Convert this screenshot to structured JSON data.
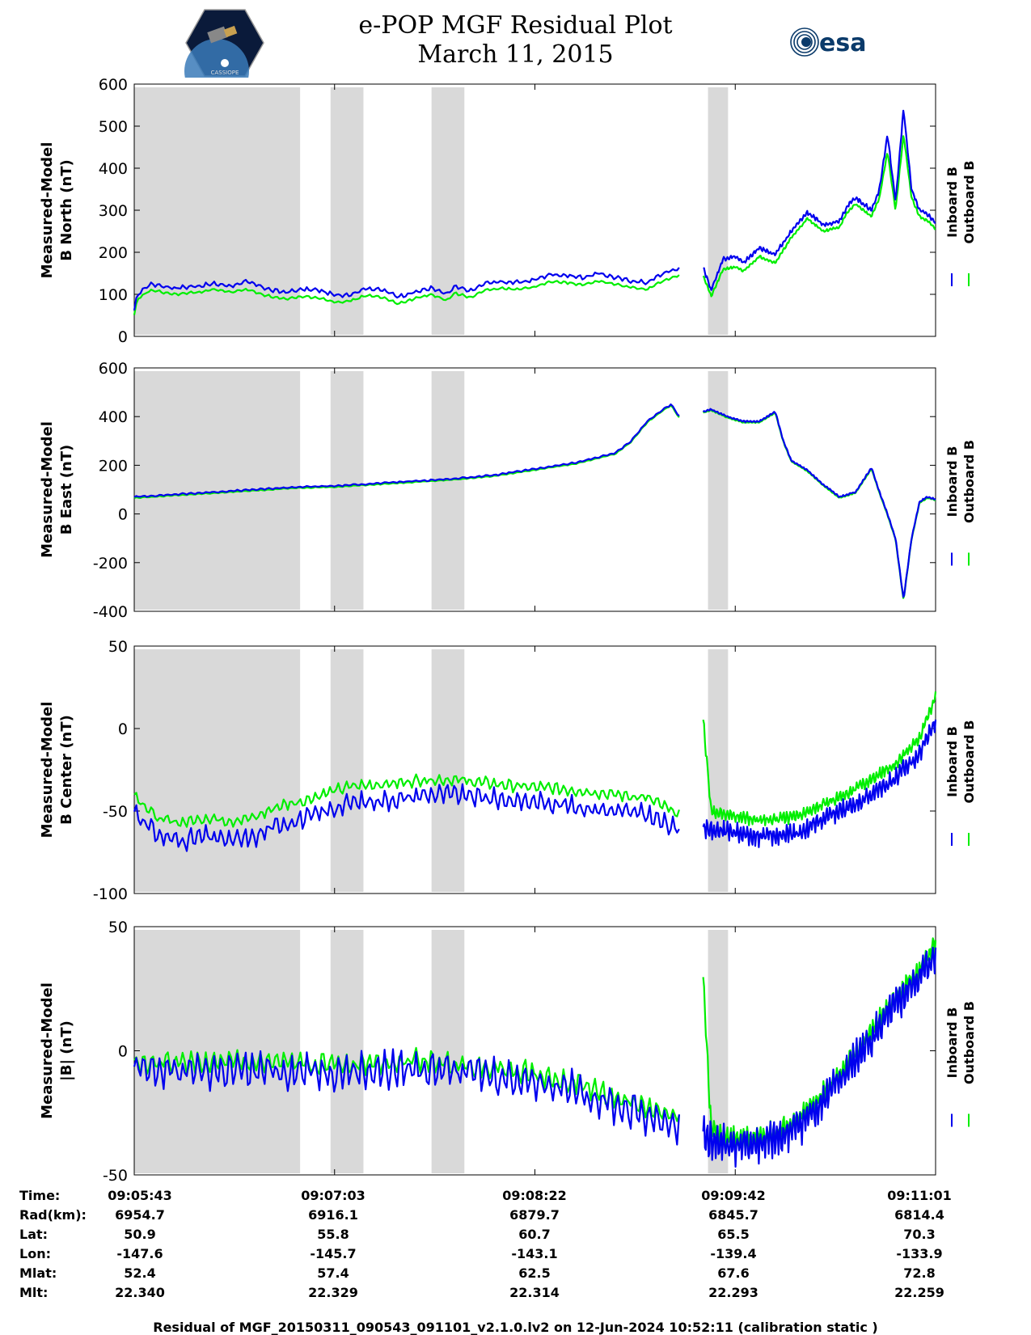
{
  "header": {
    "title_line1": "e-POP MGF Residual Plot",
    "title_line2": "March 11, 2015",
    "logo_left_text": "CASSIOPE",
    "logo_right_text": "esa"
  },
  "colors": {
    "inboard": "#0000ee",
    "outboard": "#00ee00",
    "shade": "#d9d9d9"
  },
  "chart_data": [
    {
      "type": "line",
      "panel": "b-north",
      "ylabel_line1": "Measured-Model",
      "ylabel_line2": "B North (nT)",
      "ylim": [
        0,
        600
      ],
      "yticks": [
        0,
        100,
        200,
        300,
        400,
        500,
        600
      ],
      "ytick_labels": [
        "0",
        "100",
        "200",
        "300",
        "400",
        "500",
        "600"
      ],
      "legend": [
        "Inboard B",
        "Outboard B"
      ],
      "series": [
        {
          "name": "Inboard B",
          "segments": [
            {
              "x": [
                0,
                0.4,
                2,
                5,
                8,
                10,
                12,
                14,
                16,
                17,
                19,
                21,
                23,
                25,
                27,
                29,
                31,
                33,
                35,
                37,
                39,
                40,
                42,
                44,
                46,
                48,
                50,
                52,
                54,
                56,
                58,
                60,
                62,
                64,
                66,
                68
              ],
              "y": [
                60,
                100,
                125,
                115,
                120,
                125,
                120,
                130,
                118,
                110,
                105,
                112,
                110,
                98,
                100,
                115,
                110,
                95,
                105,
                115,
                100,
                118,
                108,
                128,
                130,
                128,
                135,
                148,
                145,
                140,
                150,
                140,
                132,
                128,
                150,
                162
              ]
            },
            {
              "x": [
                71,
                72,
                73.5,
                75,
                76,
                78,
                80,
                82,
                84,
                86,
                88,
                89,
                90,
                91,
                92,
                93,
                94,
                95,
                96,
                97,
                98,
                99,
                100
              ],
              "y": [
                165,
                110,
                185,
                190,
                175,
                210,
                195,
                250,
                295,
                265,
                275,
                310,
                330,
                315,
                300,
                350,
                480,
                320,
                540,
                350,
                300,
                290,
                270
              ]
            }
          ]
        },
        {
          "name": "Outboard B",
          "segments": [
            {
              "x": [
                0,
                0.4,
                2,
                5,
                8,
                10,
                12,
                14,
                16,
                17,
                19,
                21,
                23,
                25,
                27,
                29,
                31,
                33,
                35,
                37,
                39,
                40,
                42,
                44,
                46,
                48,
                50,
                52,
                54,
                56,
                58,
                60,
                62,
                64,
                66,
                68
              ],
              "y": [
                50,
                88,
                110,
                100,
                105,
                112,
                105,
                112,
                100,
                95,
                88,
                95,
                92,
                82,
                84,
                98,
                92,
                78,
                90,
                100,
                85,
                103,
                92,
                112,
                114,
                112,
                118,
                130,
                128,
                122,
                132,
                124,
                116,
                112,
                132,
                146
              ]
            },
            {
              "x": [
                71,
                72,
                73.5,
                75,
                76,
                78,
                80,
                82,
                84,
                86,
                88,
                89,
                90,
                91,
                92,
                93,
                94,
                95,
                96,
                97,
                98,
                99,
                100
              ],
              "y": [
                145,
                95,
                160,
                165,
                155,
                190,
                175,
                235,
                280,
                250,
                260,
                295,
                315,
                300,
                285,
                330,
                440,
                300,
                480,
                330,
                285,
                275,
                255
              ]
            }
          ]
        }
      ]
    },
    {
      "type": "line",
      "panel": "b-east",
      "ylabel_line1": "Measured-Model",
      "ylabel_line2": "B East (nT)",
      "ylim": [
        -400,
        600
      ],
      "yticks": [
        -400,
        -200,
        0,
        200,
        400,
        600
      ],
      "ytick_labels": [
        "-400",
        "-200",
        "0",
        "200",
        "400",
        "600"
      ],
      "legend": [
        "Inboard B",
        "Outboard B"
      ],
      "series": [
        {
          "name": "Inboard B",
          "segments": [
            {
              "x": [
                0,
                5,
                10,
                15,
                20,
                25,
                30,
                35,
                40,
                45,
                50,
                55,
                60,
                62,
                64,
                66,
                67,
                68
              ],
              "y": [
                70,
                80,
                90,
                100,
                110,
                115,
                125,
                135,
                145,
                160,
                185,
                210,
                250,
                300,
                380,
                430,
                450,
                400
              ]
            },
            {
              "x": [
                71,
                72,
                74,
                76,
                78,
                80,
                81,
                82,
                84,
                86,
                88,
                90,
                92,
                93,
                94,
                95,
                96,
                97,
                98,
                99,
                100
              ],
              "y": [
                420,
                430,
                400,
                380,
                380,
                420,
                300,
                220,
                180,
                120,
                70,
                90,
                190,
                90,
                0,
                -100,
                -350,
                -100,
                50,
                70,
                60
              ]
            }
          ]
        },
        {
          "name": "Outboard B",
          "segments": [
            {
              "x": [
                0,
                5,
                10,
                15,
                20,
                25,
                30,
                35,
                40,
                45,
                50,
                55,
                60,
                62,
                64,
                66,
                67,
                68
              ],
              "y": [
                66,
                76,
                86,
                96,
                106,
                111,
                121,
                131,
                141,
                156,
                181,
                206,
                246,
                296,
                376,
                426,
                446,
                396
              ]
            },
            {
              "x": [
                71,
                72,
                74,
                76,
                78,
                80,
                81,
                82,
                84,
                86,
                88,
                90,
                92,
                93,
                94,
                95,
                96,
                97,
                98,
                99,
                100
              ],
              "y": [
                416,
                426,
                396,
                376,
                376,
                416,
                296,
                216,
                176,
                116,
                66,
                86,
                186,
                86,
                -4,
                -104,
                -354,
                -104,
                46,
                66,
                56
              ]
            }
          ]
        }
      ]
    },
    {
      "type": "line",
      "panel": "b-center",
      "ylabel_line1": "Measured-Model",
      "ylabel_line2": "B Center (nT)",
      "ylim": [
        -100,
        50
      ],
      "yticks": [
        -100,
        -50,
        0,
        50
      ],
      "ytick_labels": [
        "-100",
        "-50",
        "0",
        "50"
      ],
      "legend": [
        "Inboard B",
        "Outboard B"
      ],
      "series": [
        {
          "name": "Inboard B",
          "segments": [
            {
              "x": [
                0,
                3,
                6,
                9,
                12,
                15,
                18,
                21,
                24,
                27,
                30,
                33,
                36,
                40,
                44,
                48,
                52,
                56,
                60,
                64,
                68
              ],
              "y": [
                -50,
                -65,
                -68,
                -65,
                -68,
                -66,
                -58,
                -55,
                -50,
                -45,
                -44,
                -43,
                -40,
                -40,
                -42,
                -44,
                -45,
                -48,
                -50,
                -52,
                -62
              ]
            },
            {
              "x": [
                71,
                74,
                77,
                80,
                83,
                86,
                89,
                92,
                95,
                98,
                100
              ],
              "y": [
                -60,
                -62,
                -65,
                -65,
                -63,
                -55,
                -48,
                -40,
                -30,
                -15,
                5
              ]
            }
          ]
        },
        {
          "name": "Outboard B",
          "segments": [
            {
              "x": [
                0,
                3,
                6,
                9,
                12,
                15,
                18,
                21,
                24,
                27,
                30,
                33,
                36,
                40,
                44,
                48,
                52,
                56,
                60,
                64,
                68
              ],
              "y": [
                -40,
                -55,
                -57,
                -54,
                -56,
                -54,
                -47,
                -44,
                -39,
                -35,
                -34,
                -33,
                -31,
                -31,
                -33,
                -35,
                -36,
                -38,
                -40,
                -42,
                -52
              ]
            },
            {
              "x": [
                71,
                72,
                74,
                77,
                80,
                83,
                86,
                89,
                92,
                95,
                98,
                100
              ],
              "y": [
                5,
                -50,
                -52,
                -55,
                -55,
                -53,
                -46,
                -39,
                -31,
                -21,
                -6,
                20
              ]
            }
          ]
        }
      ]
    },
    {
      "type": "line",
      "panel": "b-total",
      "ylabel_line1": "Measured-Model",
      "ylabel_line2": "|B| (nT)",
      "ylim": [
        -50,
        50
      ],
      "yticks": [
        -50,
        0,
        50
      ],
      "ytick_labels": [
        "-50",
        "0",
        "50"
      ],
      "legend": [
        "Inboard B",
        "Outboard B"
      ],
      "series": [
        {
          "name": "Inboard B",
          "segments": [
            {
              "x": [
                0,
                10,
                20,
                25,
                30,
                35,
                40,
                45,
                50,
                55,
                60,
                64,
                68
              ],
              "y": [
                -8,
                -8,
                -8,
                -8,
                -8,
                -7,
                -8,
                -10,
                -12,
                -16,
                -22,
                -26,
                -30
              ]
            },
            {
              "x": [
                71,
                74,
                77,
                80,
                83,
                86,
                89,
                92,
                95,
                98,
                100
              ],
              "y": [
                -35,
                -38,
                -38,
                -36,
                -30,
                -20,
                -8,
                5,
                18,
                30,
                38
              ]
            }
          ]
        },
        {
          "name": "Outboard B",
          "segments": [
            {
              "x": [
                0,
                10,
                20,
                25,
                30,
                35,
                40,
                45,
                50,
                55,
                60,
                64,
                68
              ],
              "y": [
                -5,
                -5,
                -5,
                -5,
                -5,
                -4,
                -5,
                -7,
                -9,
                -13,
                -19,
                -23,
                -27
              ]
            },
            {
              "x": [
                71,
                72,
                74,
                77,
                80,
                83,
                86,
                89,
                92,
                95,
                98,
                100
              ],
              "y": [
                28,
                -32,
                -35,
                -35,
                -33,
                -27,
                -17,
                -5,
                8,
                21,
                33,
                44
              ]
            }
          ]
        }
      ]
    }
  ],
  "shaded_regions": [
    [
      0,
      20.7
    ],
    [
      24.5,
      28.6
    ],
    [
      37.1,
      41.2
    ],
    [
      71.6,
      74.1
    ]
  ],
  "x_axis": {
    "xlim": [
      0,
      100
    ],
    "tick_positions": [
      0,
      25,
      50,
      75,
      100
    ]
  },
  "annotation_table": {
    "labels": [
      "Time:",
      "Rad(km):",
      "Lat:",
      "Lon:",
      "Mlat:",
      "Mlt:"
    ],
    "columns": [
      [
        "09:05:43",
        "6954.7",
        "50.9",
        "-147.6",
        "52.4",
        "22.340"
      ],
      [
        "09:07:03",
        "6916.1",
        "55.8",
        "-145.7",
        "57.4",
        "22.329"
      ],
      [
        "09:08:22",
        "6879.7",
        "60.7",
        "-143.1",
        "62.5",
        "22.314"
      ],
      [
        "09:09:42",
        "6845.7",
        "65.5",
        "-139.4",
        "67.6",
        "22.293"
      ],
      [
        "09:11:01",
        "6814.4",
        "70.3",
        "-133.9",
        "72.8",
        "22.259"
      ]
    ]
  },
  "footer": "Residual of MGF_20150311_090543_091101_v2.1.0.lv2 on 12-Jun-2024 10:52:11 (calibration static )"
}
